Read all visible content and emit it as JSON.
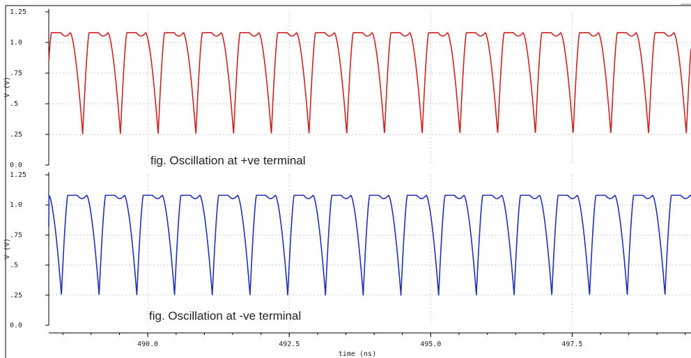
{
  "chart_data": [
    {
      "type": "line",
      "title": "",
      "annotation": "fig. Oscillation at +ve terminal",
      "xlabel": "",
      "ylabel": "V (V)",
      "xlim": [
        488.25,
        499.6
      ],
      "ylim": [
        0.0,
        1.25
      ],
      "yticks": [
        "0.0",
        ".25",
        ".5",
        ".75",
        "1.0",
        "1.25"
      ],
      "grid": true,
      "color": "#cc2222",
      "series": [
        {
          "period_ns": 0.6667,
          "first_peak_ns": 488.63,
          "trough_phase": 0.33,
          "peak_phase": 0.5,
          "shoulder_phase": 0.75,
          "max_v": 1.08,
          "shoulder_v": 0.97,
          "min_v": 0.25,
          "start_v": 0.85
        }
      ]
    },
    {
      "type": "line",
      "title": "",
      "annotation": "fig. Oscillation at -ve terminal",
      "xlabel": "time (ns)",
      "ylabel": "V (V)",
      "xlim": [
        488.25,
        499.6
      ],
      "ylim": [
        0.0,
        1.25
      ],
      "yticks": [
        "0.0",
        ".25",
        ".5",
        ".75",
        "1.0",
        "1.25"
      ],
      "xticks": [
        {
          "value": 490.0,
          "label": "490.0"
        },
        {
          "value": 492.5,
          "label": "492.5"
        },
        {
          "value": 495.0,
          "label": "495.0"
        },
        {
          "value": 497.5,
          "label": "497.5"
        }
      ],
      "grid": true,
      "color": "#1f2fb8",
      "series": [
        {
          "period_ns": 0.6667,
          "first_peak_ns": 488.92,
          "trough_phase": 0.33,
          "peak_phase": 0.5,
          "shoulder_phase": 0.75,
          "max_v": 1.08,
          "shoulder_v": 0.97,
          "min_v": 0.25,
          "start_v": 0.82
        }
      ]
    }
  ]
}
